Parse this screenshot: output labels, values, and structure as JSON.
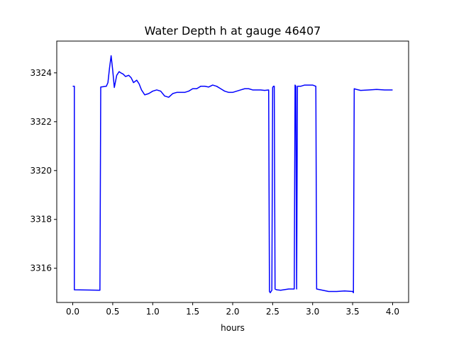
{
  "chart_data": {
    "type": "line",
    "title": "Water Depth h at gauge 46407",
    "xlabel": "hours",
    "ylabel": "",
    "xlim": [
      -0.2,
      4.2
    ],
    "ylim": [
      3314.6,
      3325.3
    ],
    "xticks": [
      0.0,
      0.5,
      1.0,
      1.5,
      2.0,
      2.5,
      3.0,
      3.5,
      4.0
    ],
    "xtick_labels": [
      "0.0",
      "0.5",
      "1.0",
      "1.5",
      "2.0",
      "2.5",
      "3.0",
      "3.5",
      "4.0"
    ],
    "yticks": [
      3316,
      3318,
      3320,
      3322,
      3324
    ],
    "ytick_labels": [
      "3316",
      "3318",
      "3320",
      "3322",
      "3324"
    ],
    "grid": false,
    "series": [
      {
        "color": "#0000ff",
        "x": [
          0.0,
          0.02,
          0.02,
          0.34,
          0.35,
          0.42,
          0.44,
          0.46,
          0.48,
          0.5,
          0.52,
          0.55,
          0.58,
          0.6,
          0.63,
          0.66,
          0.7,
          0.73,
          0.76,
          0.8,
          0.83,
          0.86,
          0.9,
          0.95,
          1.0,
          1.05,
          1.1,
          1.15,
          1.2,
          1.25,
          1.3,
          1.4,
          1.45,
          1.5,
          1.55,
          1.6,
          1.65,
          1.7,
          1.75,
          1.8,
          1.85,
          1.9,
          1.95,
          2.0,
          2.05,
          2.1,
          2.15,
          2.2,
          2.25,
          2.3,
          2.35,
          2.4,
          2.45,
          2.46,
          2.47,
          2.49,
          2.5,
          2.51,
          2.52,
          2.53,
          2.55,
          2.6,
          2.7,
          2.77,
          2.78,
          2.79,
          2.8,
          2.81,
          2.82,
          2.85,
          2.9,
          2.95,
          3.0,
          3.04,
          3.05,
          3.2,
          3.3,
          3.4,
          3.5,
          3.51,
          3.52,
          3.55,
          3.6,
          3.7,
          3.8,
          3.9,
          4.0
        ],
        "y": [
          3323.45,
          3323.45,
          3315.12,
          3315.1,
          3323.42,
          3323.45,
          3323.6,
          3324.2,
          3324.7,
          3324.1,
          3323.4,
          3323.9,
          3324.05,
          3324.0,
          3323.95,
          3323.85,
          3323.9,
          3323.8,
          3323.6,
          3323.7,
          3323.55,
          3323.3,
          3323.1,
          3323.15,
          3323.25,
          3323.3,
          3323.25,
          3323.05,
          3323.0,
          3323.15,
          3323.2,
          3323.2,
          3323.25,
          3323.35,
          3323.35,
          3323.45,
          3323.45,
          3323.42,
          3323.5,
          3323.45,
          3323.35,
          3323.25,
          3323.2,
          3323.2,
          3323.25,
          3323.3,
          3323.35,
          3323.35,
          3323.3,
          3323.3,
          3323.3,
          3323.28,
          3323.3,
          3315.05,
          3315.0,
          3315.1,
          3323.4,
          3323.45,
          3323.45,
          3315.15,
          3315.12,
          3315.1,
          3315.15,
          3315.15,
          3323.5,
          3323.45,
          3315.15,
          3323.45,
          3323.45,
          3323.45,
          3323.5,
          3323.5,
          3323.5,
          3323.45,
          3315.15,
          3315.05,
          3315.05,
          3315.07,
          3315.05,
          3315.0,
          3323.35,
          3323.32,
          3323.28,
          3323.3,
          3323.32,
          3323.3,
          3323.3
        ]
      }
    ]
  }
}
